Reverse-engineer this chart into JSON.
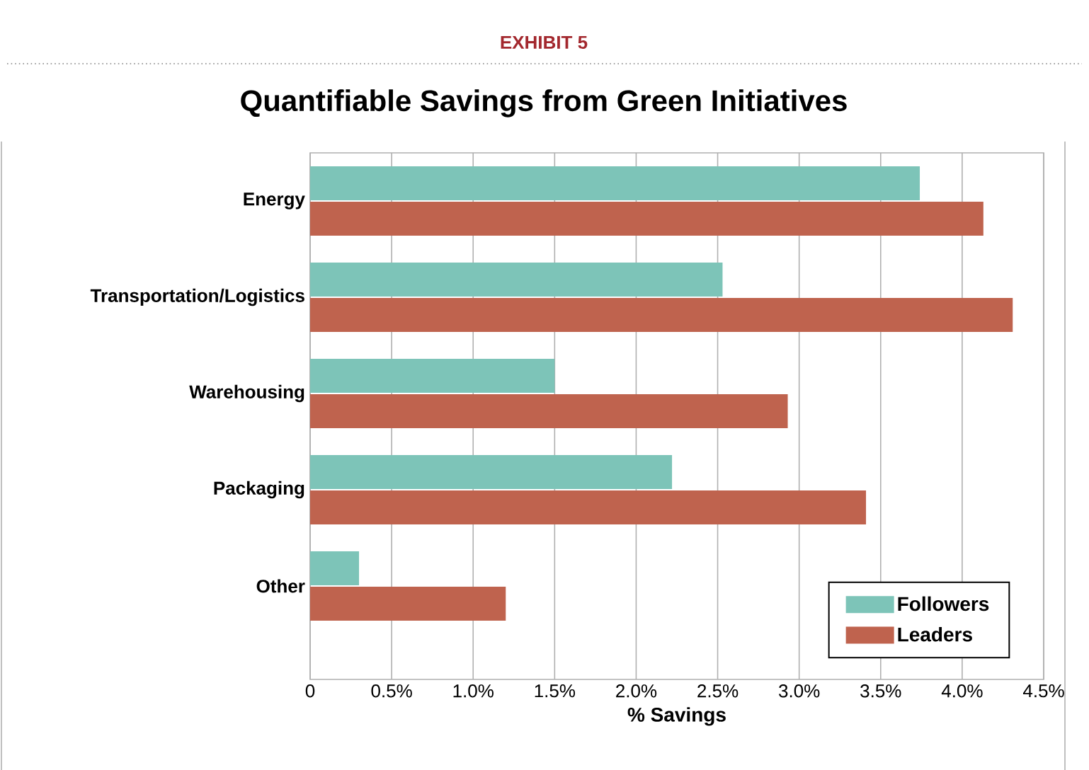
{
  "chart_data": {
    "type": "bar",
    "orientation": "horizontal",
    "title": "Quantifiable Savings from Green Initiatives",
    "xlabel": "% Savings",
    "annotations": [
      "EXHIBIT 5"
    ],
    "categories": [
      "Energy",
      "Transportation/Logistics",
      "Warehousing",
      "Packaging",
      "Other"
    ],
    "series": [
      {
        "name": "Followers",
        "color": "#7dc4b8",
        "values": [
          3.74,
          2.53,
          1.5,
          2.22,
          0.3
        ]
      },
      {
        "name": "Leaders",
        "color": "#bf634e",
        "values": [
          4.13,
          4.31,
          2.93,
          3.41,
          1.2
        ]
      }
    ],
    "xlim": [
      0,
      4.5
    ],
    "xticks": [
      {
        "value": 0,
        "label": "0"
      },
      {
        "value": 0.5,
        "label": "0.5%"
      },
      {
        "value": 1,
        "label": "1.0%"
      },
      {
        "value": 1.5,
        "label": "1.5%"
      },
      {
        "value": 2,
        "label": "2.0%"
      },
      {
        "value": 2.5,
        "label": "2.5%"
      },
      {
        "value": 3,
        "label": "3.0%"
      },
      {
        "value": 3.5,
        "label": "3.5%"
      },
      {
        "value": 4,
        "label": "4.0%"
      },
      {
        "value": 4.5,
        "label": "4.5%"
      }
    ],
    "grid": "x",
    "legend": "bottom right"
  }
}
